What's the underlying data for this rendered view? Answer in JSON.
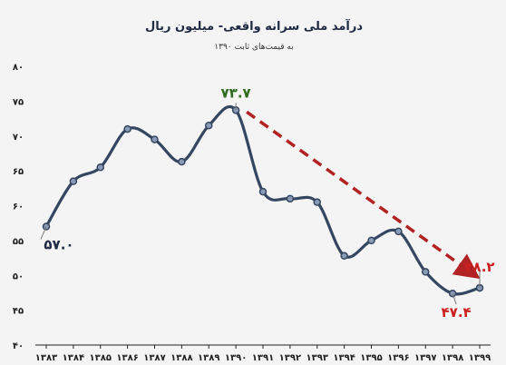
{
  "chart_data": {
    "type": "line",
    "title": "درآمد ملی سرانه واقعی- میلیون ریال",
    "subtitle": "به قیمت‌های ثابت ۱۳۹۰",
    "xlabel": "",
    "ylabel": "",
    "ylim": [
      40,
      80
    ],
    "y_ticks": [
      40,
      45,
      50,
      55,
      60,
      65,
      70,
      75,
      80
    ],
    "y_tick_labels": [
      "۴۰",
      "۴۵",
      "۵۰",
      "۵۵",
      "۶۰",
      "۶۵",
      "۷۰",
      "۷۵",
      "۸۰"
    ],
    "categories": [
      "۱۳۸۳",
      "۱۳۸۴",
      "۱۳۸۵",
      "۱۳۸۶",
      "۱۳۸۷",
      "۱۳۸۸",
      "۱۳۸۹",
      "۱۳۹۰",
      "۱۳۹۱",
      "۱۳۹۲",
      "۱۳۹۳",
      "۱۳۹۴",
      "۱۳۹۵",
      "۱۳۹۶",
      "۱۳۹۷",
      "۱۳۹۸",
      "۱۳۹۹"
    ],
    "series": [
      {
        "values": [
          57.0,
          63.5,
          65.5,
          71.0,
          69.5,
          66.3,
          71.5,
          73.7,
          62.0,
          61.0,
          60.5,
          52.8,
          55.0,
          56.3,
          50.5,
          47.4,
          48.2
        ]
      }
    ],
    "grid": false,
    "trend_arrow": {
      "from": "۱۳۹۰",
      "to": "۱۳۹۹",
      "style": "dashed",
      "color": "#b22222"
    },
    "annotations": [
      {
        "text": "۷۳.۷",
        "category": "۱۳۹۰",
        "color": "#2e6b1e"
      },
      {
        "text": "۵۷.۰",
        "category": "۱۳۸۳",
        "color": "#1f2a44"
      },
      {
        "text": "۴۸.۲",
        "category": "۱۳۹۹",
        "color": "#cc1f1f"
      },
      {
        "text": "۴۷.۴",
        "category": "۱۳۹۸",
        "color": "#cc1f1f"
      }
    ],
    "colors": {
      "line": "#344660",
      "axis": "#222222",
      "point_fill": "#8a9bb8"
    }
  }
}
